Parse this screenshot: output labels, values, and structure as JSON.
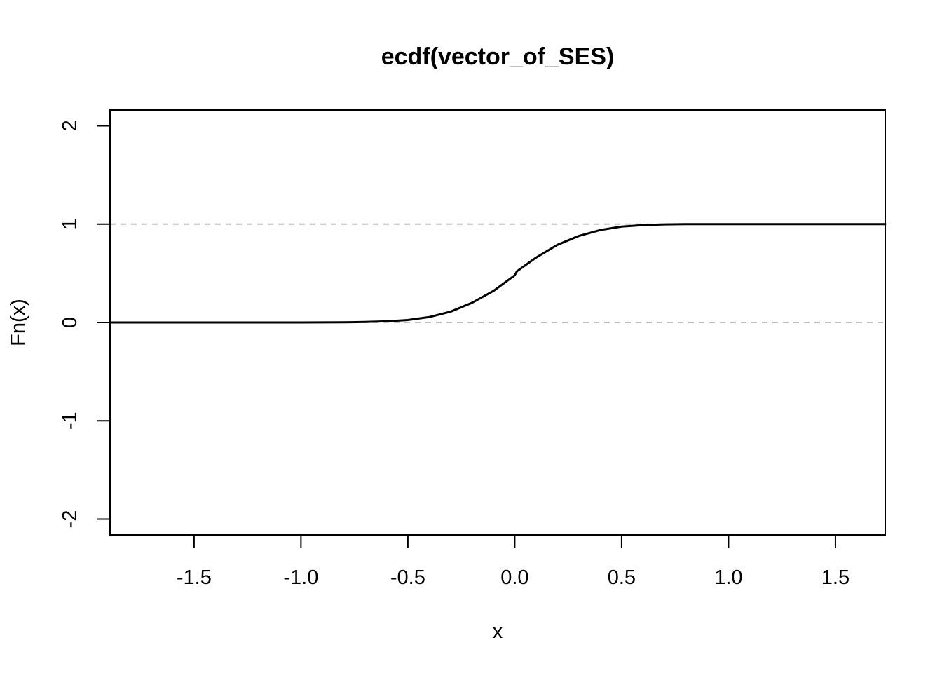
{
  "chart_data": {
    "type": "line",
    "title": "ecdf(vector_of_SES)",
    "xlabel": "x",
    "ylabel": "Fn(x)",
    "xlim": [
      -1.893,
      1.733
    ],
    "ylim": [
      -2.16,
      2.16
    ],
    "x_ticks": [
      -1.5,
      -1.0,
      -0.5,
      0.0,
      0.5,
      1.0,
      1.5
    ],
    "x_tick_labels": [
      "-1.5",
      "-1.0",
      "-0.5",
      "0.0",
      "0.5",
      "1.0",
      "1.5"
    ],
    "y_ticks": [
      -2,
      -1,
      0,
      1,
      2
    ],
    "y_tick_labels": [
      "-2",
      "-1",
      "0",
      "1",
      "2"
    ],
    "reference_lines": [
      0,
      1
    ],
    "grid": false,
    "colors": {
      "curve": "#000000",
      "reference": "#bebebe",
      "frame": "#000000"
    },
    "series": [
      {
        "x": [
          -1.893,
          -1.5,
          -1.0,
          -0.8,
          -0.7,
          -0.6,
          -0.5,
          -0.4,
          -0.3,
          -0.2,
          -0.1,
          0.0,
          0.01,
          0.1,
          0.2,
          0.3,
          0.4,
          0.5,
          0.6,
          0.7,
          0.8,
          1.0,
          1.5,
          1.733
        ],
        "y": [
          0.0,
          0.0,
          0.0,
          0.002,
          0.005,
          0.012,
          0.025,
          0.055,
          0.11,
          0.2,
          0.32,
          0.48,
          0.52,
          0.66,
          0.79,
          0.88,
          0.94,
          0.975,
          0.99,
          0.997,
          1.0,
          1.0,
          1.0,
          1.0
        ]
      }
    ]
  }
}
